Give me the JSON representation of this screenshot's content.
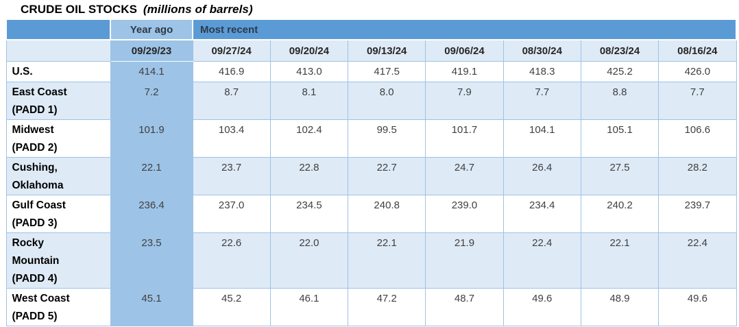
{
  "title": {
    "main": "CRUDE OIL STOCKS",
    "unit": "(millions of barrels)"
  },
  "chart_data": {
    "type": "table",
    "title": "CRUDE OIL STOCKS (millions of barrels)",
    "group_headers": {
      "year_ago": "Year ago",
      "most_recent": "Most recent"
    },
    "columns": [
      "09/29/23",
      "09/27/24",
      "09/20/24",
      "09/13/24",
      "09/06/24",
      "08/30/24",
      "08/23/24",
      "08/16/24"
    ],
    "rows": [
      {
        "label": "U.S.",
        "values": [
          "414.1",
          "416.9",
          "413.0",
          "417.5",
          "419.1",
          "418.3",
          "425.2",
          "426.0"
        ]
      },
      {
        "label": "East Coast\n(PADD 1)",
        "values": [
          "7.2",
          "8.7",
          "8.1",
          "8.0",
          "7.9",
          "7.7",
          "8.8",
          "7.7"
        ]
      },
      {
        "label": "Midwest\n(PADD 2)",
        "values": [
          "101.9",
          "103.4",
          "102.4",
          "99.5",
          "101.7",
          "104.1",
          "105.1",
          "106.6"
        ]
      },
      {
        "label": "Cushing,\nOklahoma",
        "values": [
          "22.1",
          "23.7",
          "22.8",
          "22.7",
          "24.7",
          "26.4",
          "27.5",
          "28.2"
        ]
      },
      {
        "label": "Gulf Coast\n(PADD 3)",
        "values": [
          "236.4",
          "237.0",
          "234.5",
          "240.8",
          "239.0",
          "234.4",
          "240.2",
          "239.7"
        ]
      },
      {
        "label": "Rocky\nMountain\n(PADD 4)",
        "values": [
          "23.5",
          "22.6",
          "22.0",
          "22.1",
          "21.9",
          "22.4",
          "22.1",
          "22.4"
        ]
      },
      {
        "label": "West Coast\n(PADD 5)",
        "values": [
          "45.1",
          "45.2",
          "46.1",
          "47.2",
          "48.7",
          "49.6",
          "48.9",
          "49.6"
        ]
      }
    ]
  },
  "colors": {
    "header_dark_blue": "#5b9bd5",
    "header_medium_blue": "#9dc3e6",
    "row_stripe_light": "#deeaf6",
    "row_stripe_white": "#ffffff",
    "border": "#9dc3e6",
    "group_header_text": "#2b3a4a",
    "date_header_text": "#262626",
    "value_text": "#3f3f3f",
    "label_text": "#000000"
  }
}
